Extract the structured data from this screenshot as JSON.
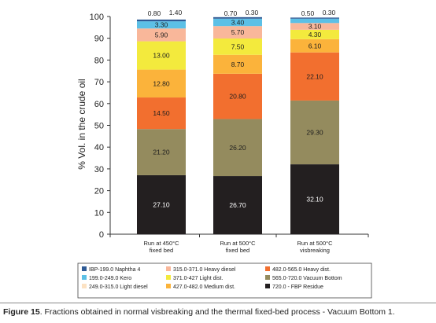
{
  "chart_data": {
    "type": "bar",
    "stacked": true,
    "ylabel": "% Vol. in the crude oil",
    "xlabel": "",
    "ylim": [
      0,
      100
    ],
    "yticks": [
      0,
      10,
      20,
      30,
      40,
      50,
      60,
      70,
      80,
      90,
      100
    ],
    "grid": false,
    "legend_position": "bottom",
    "categories": [
      [
        "Run at 450°C",
        "fixed bed"
      ],
      [
        "Run at 500°C",
        "fixed bed"
      ],
      [
        "Run at 500°C",
        "visbreaking"
      ]
    ],
    "series": [
      {
        "name": "720.0 - FBP Residue",
        "color": "#231f20",
        "text_color": "#ffffff",
        "values": [
          27.1,
          26.7,
          32.1
        ],
        "labels": [
          "27.10",
          "26.70",
          "32.10"
        ]
      },
      {
        "name": "565.0-720.0 Vacuum Bottom",
        "color": "#948b5e",
        "text_color": "#1e1e1e",
        "values": [
          21.2,
          26.2,
          29.3
        ],
        "labels": [
          "21.20",
          "26.20",
          "29.30"
        ]
      },
      {
        "name": "482.0-565.0 Heavy dist.",
        "color": "#f26f2f",
        "text_color": "#1e1e1e",
        "values": [
          14.5,
          20.8,
          22.1
        ],
        "labels": [
          "14.50",
          "20.80",
          "22.10"
        ]
      },
      {
        "name": "427.0-482.0 Medium dist.",
        "color": "#fbb33b",
        "text_color": "#1e1e1e",
        "values": [
          12.8,
          8.7,
          6.1
        ],
        "labels": [
          "12.80",
          "8.70",
          "6.10"
        ]
      },
      {
        "name": "371.0-427 Light dist.",
        "color": "#f3ea3d",
        "text_color": "#1e1e1e",
        "values": [
          13.0,
          7.5,
          4.3
        ],
        "labels": [
          "13.00",
          "7.50",
          "4.30"
        ]
      },
      {
        "name": "315.0-371.0 Heavy diesel",
        "color": "#f9b79a",
        "text_color": "#1e1e1e",
        "values": [
          5.9,
          5.7,
          3.1
        ],
        "labels": [
          "5.90",
          "5.70",
          "3.10"
        ]
      },
      {
        "name": "249.0-315.0 Light diesel",
        "color": "#fce2c3",
        "text_color": "#1e1e1e",
        "values": [
          0,
          0,
          0
        ],
        "labels": [
          "",
          "",
          ""
        ]
      },
      {
        "name": "199.0-249.0 Kero",
        "color": "#5cc0e6",
        "text_color": "#1e1e1e",
        "values": [
          3.3,
          3.4,
          2.0
        ],
        "labels": [
          "3.30",
          "3.40",
          "2.00"
        ]
      },
      {
        "name": "IBP-199.0 Naphtha 4",
        "color": "#2e5a95",
        "text_color": "#1e1e1e",
        "values": [
          0.8,
          0.7,
          0.5
        ],
        "labels": [
          "0.80",
          "0.70",
          "0.50"
        ]
      }
    ],
    "top_labels": [
      [
        "0.80",
        "1.40"
      ],
      [
        "0.70",
        "0.30"
      ],
      [
        "0.50",
        "0.30"
      ]
    ],
    "legend_order": [
      "IBP-199.0 Naphtha 4",
      "199.0-249.0 Kero",
      "249.0-315.0 Light diesel",
      "315.0-371.0 Heavy diesel",
      "371.0-427 Light dist.",
      "427.0-482.0 Medium dist.",
      "482.0-565.0 Heavy dist.",
      "565.0-720.0 Vacuum Bottom",
      "720.0 - FBP Residue"
    ]
  },
  "caption": {
    "figure": "Figure 15",
    "text": ". Fractions obtained in normal visbreaking and the thermal fixed-bed process - Vacuum Bottom 1."
  }
}
